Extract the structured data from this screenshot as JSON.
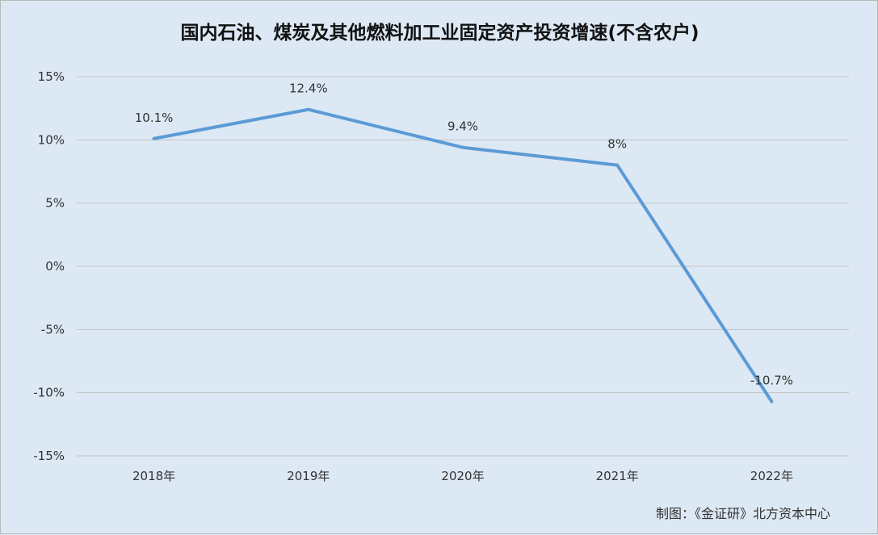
{
  "chart_data": {
    "type": "line",
    "title": "国内石油、煤炭及其他燃料加工业固定资产投资增速(不含农户)",
    "categories": [
      "2018年",
      "2019年",
      "2020年",
      "2021年",
      "2022年"
    ],
    "series": [
      {
        "values": [
          10.1,
          12.4,
          9.4,
          8,
          -10.7
        ]
      }
    ],
    "data_labels": [
      "10.1%",
      "12.4%",
      "9.4%",
      "8%",
      "-10.7%"
    ],
    "y_ticks": [
      15,
      10,
      5,
      0,
      -5,
      -10,
      -15
    ],
    "y_tick_labels": [
      "15%",
      "10%",
      "5%",
      "0%",
      "-5%",
      "-10%",
      "-15%"
    ],
    "ylim": [
      -15,
      15
    ],
    "grid": true,
    "line_color": "#5b9bd5",
    "credit": "制图：《金证研》北方资本中心"
  }
}
